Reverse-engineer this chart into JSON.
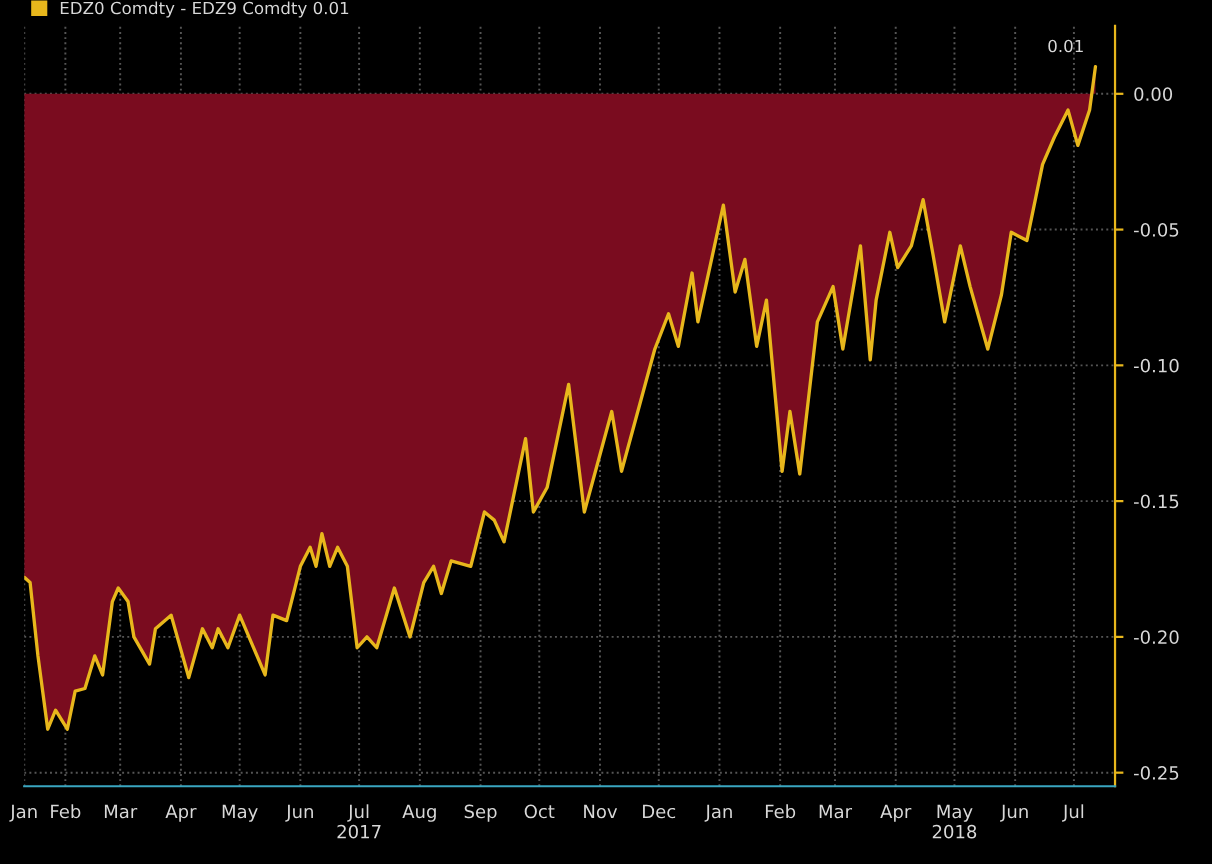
{
  "chart_data": {
    "type": "area",
    "x": [
      "2017-01-11",
      "2017-01-14",
      "2017-01-18",
      "2017-01-23",
      "2017-01-27",
      "2017-02-02",
      "2017-02-06",
      "2017-02-11",
      "2017-02-16",
      "2017-02-20",
      "2017-02-25",
      "2017-02-28",
      "2017-03-05",
      "2017-03-08",
      "2017-03-16",
      "2017-03-19",
      "2017-03-27",
      "2017-04-05",
      "2017-04-12",
      "2017-04-17",
      "2017-04-20",
      "2017-04-25",
      "2017-05-01",
      "2017-05-14",
      "2017-05-18",
      "2017-05-25",
      "2017-06-01",
      "2017-06-06",
      "2017-06-09",
      "2017-06-12",
      "2017-06-16",
      "2017-06-20",
      "2017-06-25",
      "2017-06-30",
      "2017-07-05",
      "2017-07-10",
      "2017-07-19",
      "2017-07-27",
      "2017-08-03",
      "2017-08-08",
      "2017-08-12",
      "2017-08-17",
      "2017-08-27",
      "2017-09-03",
      "2017-09-08",
      "2017-09-13",
      "2017-09-24",
      "2017-09-28",
      "2017-10-05",
      "2017-10-16",
      "2017-10-24",
      "2017-11-07",
      "2017-11-12",
      "2017-11-29",
      "2017-12-06",
      "2017-12-11",
      "2017-12-18",
      "2017-12-21",
      "2018-01-03",
      "2018-01-09",
      "2018-01-14",
      "2018-01-20",
      "2018-01-25",
      "2018-02-02",
      "2018-02-06",
      "2018-02-11",
      "2018-02-20",
      "2018-02-28",
      "2018-03-05",
      "2018-03-14",
      "2018-03-19",
      "2018-03-22",
      "2018-03-29",
      "2018-04-02",
      "2018-04-09",
      "2018-04-15",
      "2018-04-20",
      "2018-04-26",
      "2018-05-04",
      "2018-05-09",
      "2018-05-18",
      "2018-05-25",
      "2018-05-30",
      "2018-06-07",
      "2018-06-15",
      "2018-06-21",
      "2018-06-28",
      "2018-07-03",
      "2018-07-09",
      "2018-07-12"
    ],
    "series": [
      {
        "name": "EDZ0 Comdty - EDZ9 Comdty 0.01",
        "color": "#e8b71c",
        "values": [
          -0.178,
          -0.18,
          -0.207,
          -0.234,
          -0.227,
          -0.234,
          -0.22,
          -0.219,
          -0.207,
          -0.214,
          -0.187,
          -0.182,
          -0.187,
          -0.2,
          -0.21,
          -0.197,
          -0.192,
          -0.215,
          -0.197,
          -0.204,
          -0.197,
          -0.204,
          -0.192,
          -0.214,
          -0.192,
          -0.194,
          -0.174,
          -0.167,
          -0.174,
          -0.162,
          -0.174,
          -0.167,
          -0.174,
          -0.204,
          -0.2,
          -0.204,
          -0.182,
          -0.2,
          -0.18,
          -0.174,
          -0.184,
          -0.172,
          -0.174,
          -0.154,
          -0.157,
          -0.165,
          -0.127,
          -0.154,
          -0.145,
          -0.107,
          -0.154,
          -0.117,
          -0.139,
          -0.094,
          -0.081,
          -0.093,
          -0.066,
          -0.084,
          -0.041,
          -0.073,
          -0.061,
          -0.093,
          -0.076,
          -0.139,
          -0.117,
          -0.14,
          -0.084,
          -0.071,
          -0.094,
          -0.056,
          -0.098,
          -0.076,
          -0.051,
          -0.064,
          -0.056,
          -0.039,
          -0.059,
          -0.084,
          -0.056,
          -0.071,
          -0.094,
          -0.074,
          -0.051,
          -0.054,
          -0.026,
          -0.016,
          -0.006,
          -0.019,
          -0.006,
          0.01
        ]
      }
    ],
    "xlim": [
      "2017-01-11",
      "2018-07-22"
    ],
    "xticks": [
      {
        "value": "2017-01-11",
        "label": "Jan"
      },
      {
        "value": "2017-02-01",
        "label": "Feb"
      },
      {
        "value": "2017-03-01",
        "label": "Mar"
      },
      {
        "value": "2017-04-01",
        "label": "Apr"
      },
      {
        "value": "2017-05-01",
        "label": "May"
      },
      {
        "value": "2017-06-01",
        "label": "Jun"
      },
      {
        "value": "2017-07-01",
        "label": "Jul\n2017"
      },
      {
        "value": "2017-08-01",
        "label": "Aug"
      },
      {
        "value": "2017-09-01",
        "label": "Sep"
      },
      {
        "value": "2017-10-01",
        "label": "Oct"
      },
      {
        "value": "2017-11-01",
        "label": "Nov"
      },
      {
        "value": "2017-12-01",
        "label": "Dec"
      },
      {
        "value": "2018-01-01",
        "label": "Jan"
      },
      {
        "value": "2018-02-01",
        "label": "Feb"
      },
      {
        "value": "2018-03-01",
        "label": "Mar"
      },
      {
        "value": "2018-04-01",
        "label": "Apr"
      },
      {
        "value": "2018-05-01",
        "label": "May\n2018"
      },
      {
        "value": "2018-06-01",
        "label": "Jun"
      },
      {
        "value": "2018-07-01",
        "label": "Jul"
      }
    ],
    "ylim": [
      -0.255,
      0.025
    ],
    "yticks": [
      {
        "value": 0,
        "label": "0.00"
      },
      {
        "value": -0.05,
        "label": "-0.05"
      },
      {
        "value": -0.1,
        "label": "-0.10"
      },
      {
        "value": -0.15,
        "label": "-0.15"
      },
      {
        "value": -0.2,
        "label": "-0.20"
      },
      {
        "value": -0.25,
        "label": "-0.25"
      }
    ],
    "annotations": [
      {
        "text": "0.01",
        "x": "2018-07-12",
        "y": 0.01
      }
    ],
    "grid": true,
    "legend": "top left"
  }
}
